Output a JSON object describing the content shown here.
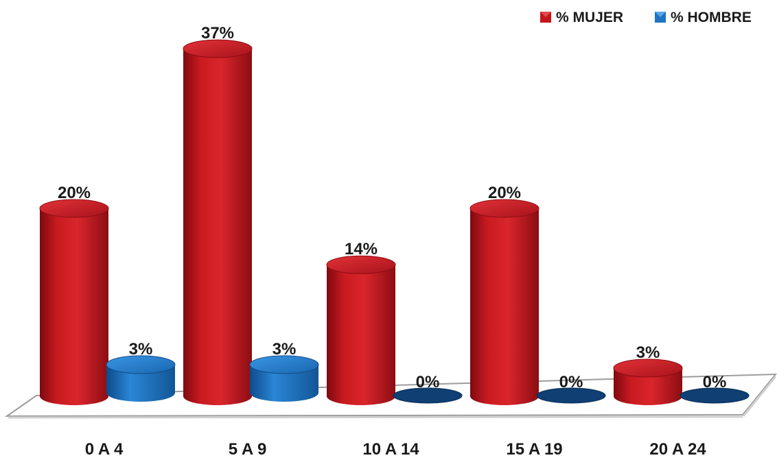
{
  "chart_data": {
    "type": "bar",
    "categories": [
      "0 A 4",
      "5 A 9",
      "10 A 14",
      "15 A 19",
      "20 A 24"
    ],
    "series": [
      {
        "name": "% MUJER",
        "values": [
          20,
          37,
          14,
          20,
          3
        ],
        "labels": [
          "20%",
          "37%",
          "14%",
          "20%",
          "3%"
        ],
        "color": "#c4161c"
      },
      {
        "name": "% HOMBRE",
        "values": [
          3,
          3,
          0,
          0,
          0
        ],
        "labels": [
          "3%",
          "3%",
          "0%",
          "0%",
          "0%"
        ],
        "color": "#1f73c1"
      }
    ],
    "unit": "%",
    "style": "3d-cylinder",
    "legend_position": "top-right",
    "grid": false
  },
  "colors": {
    "mujer": "#c4161c",
    "hombre": "#1f73c1",
    "zero_marker": "#0f3f73"
  }
}
